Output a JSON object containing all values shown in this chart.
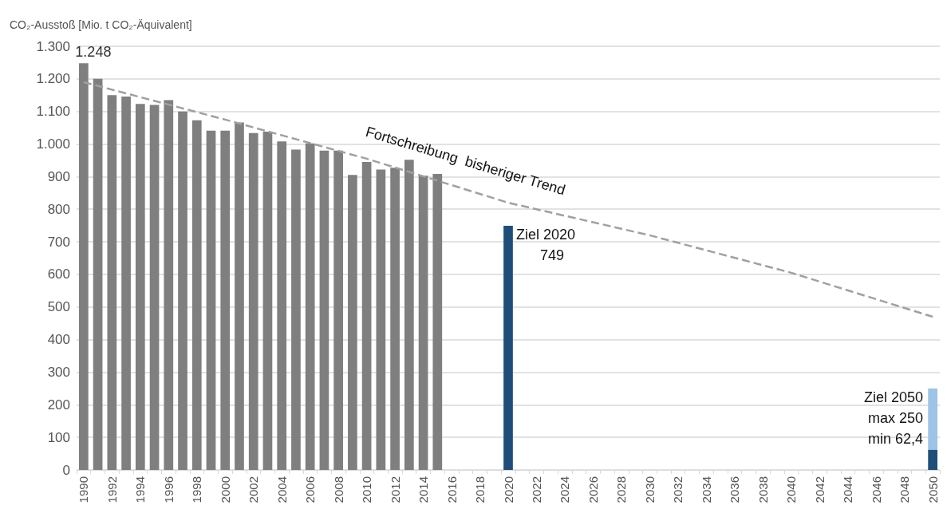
{
  "chart_data": {
    "type": "bar",
    "ylabel": "CO₂-Ausstoß [Mio. t CO₂-Äquivalent]",
    "categories": [
      "1990",
      null,
      "1992",
      null,
      "1994",
      null,
      "1996",
      null,
      "1998",
      null,
      "2000",
      null,
      "2002",
      null,
      "2004",
      null,
      "2006",
      null,
      "2008",
      null,
      "2010",
      null,
      "2012",
      null,
      "2014",
      null,
      "2016",
      null,
      "2018",
      null,
      "2020",
      null,
      "2022",
      null,
      "2024",
      null,
      "2026",
      null,
      "2028",
      null,
      "2030",
      null,
      "2032",
      null,
      "2034",
      null,
      "2036",
      null,
      "2038",
      null,
      "2040",
      null,
      "2042",
      null,
      "2044",
      null,
      "2046",
      null,
      "2048",
      null,
      "2050"
    ],
    "stacked": true,
    "series": [
      {
        "values": [
          1248,
          1200,
          1150,
          1146,
          1123,
          1120,
          1135,
          1100,
          1073,
          1041,
          1041,
          1066,
          1034,
          1038,
          1008,
          983,
          1002,
          980,
          980,
          905,
          945,
          922,
          927,
          952,
          903,
          908,
          null,
          null,
          null,
          null,
          749,
          null,
          null,
          null,
          null,
          null,
          null,
          null,
          null,
          null,
          null,
          null,
          null,
          null,
          null,
          null,
          null,
          null,
          null,
          null,
          null,
          null,
          null,
          null,
          null,
          null,
          null,
          null,
          null,
          null,
          62.4
        ],
        "colors": [
          "#7f7f7f",
          "#7f7f7f",
          "#7f7f7f",
          "#7f7f7f",
          "#7f7f7f",
          "#7f7f7f",
          "#7f7f7f",
          "#7f7f7f",
          "#7f7f7f",
          "#7f7f7f",
          "#7f7f7f",
          "#7f7f7f",
          "#7f7f7f",
          "#7f7f7f",
          "#7f7f7f",
          "#7f7f7f",
          "#7f7f7f",
          "#7f7f7f",
          "#7f7f7f",
          "#7f7f7f",
          "#7f7f7f",
          "#7f7f7f",
          "#7f7f7f",
          "#7f7f7f",
          "#7f7f7f",
          "#7f7f7f",
          null,
          null,
          null,
          null,
          "#1f4e79",
          null,
          null,
          null,
          null,
          null,
          null,
          null,
          null,
          null,
          null,
          null,
          null,
          null,
          null,
          null,
          null,
          null,
          null,
          null,
          null,
          null,
          null,
          null,
          null,
          null,
          null,
          null,
          null,
          null,
          "#1f4e79"
        ],
        "value_labels": [
          "1.248",
          null,
          null,
          null,
          null,
          null,
          null,
          null,
          null,
          null,
          null,
          null,
          null,
          null,
          null,
          null,
          null,
          null,
          null,
          null,
          null,
          null,
          null,
          null,
          null,
          null,
          null,
          null,
          null,
          null,
          null,
          null,
          null,
          null,
          null,
          null,
          null,
          null,
          null,
          null,
          null,
          null,
          null,
          null,
          null,
          null,
          null,
          null,
          null,
          null,
          null,
          null,
          null,
          null,
          null,
          null,
          null,
          null,
          null,
          null,
          null
        ]
      },
      {
        "color": "#9dc3e6",
        "values": [
          null,
          null,
          null,
          null,
          null,
          null,
          null,
          null,
          null,
          null,
          null,
          null,
          null,
          null,
          null,
          null,
          null,
          null,
          null,
          null,
          null,
          null,
          null,
          null,
          null,
          null,
          null,
          null,
          null,
          null,
          null,
          null,
          null,
          null,
          null,
          null,
          null,
          null,
          null,
          null,
          null,
          null,
          null,
          null,
          null,
          null,
          null,
          null,
          null,
          null,
          null,
          null,
          null,
          null,
          null,
          null,
          null,
          null,
          null,
          null,
          187.6
        ]
      },
      {
        "type": "line",
        "color": "#a0a0a0",
        "line_style": "dashed",
        "marker": "none",
        "values": [
          1190,
          null,
          null,
          null,
          null,
          null,
          null,
          null,
          null,
          null,
          1075,
          null,
          null,
          null,
          null,
          null,
          null,
          null,
          null,
          null,
          955,
          null,
          null,
          null,
          null,
          null,
          null,
          null,
          null,
          null,
          820,
          null,
          null,
          null,
          null,
          null,
          null,
          null,
          null,
          null,
          720,
          null,
          null,
          null,
          null,
          null,
          null,
          null,
          null,
          null,
          605,
          null,
          null,
          null,
          null,
          null,
          null,
          null,
          null,
          null,
          470
        ]
      }
    ],
    "ylim": [
      0,
      1300
    ],
    "yticks": [
      0,
      100,
      200,
      300,
      400,
      500,
      600,
      700,
      800,
      900,
      {
        "value": 1000,
        "label": "1.000"
      },
      {
        "value": 1100,
        "label": "1.100"
      },
      {
        "value": 1200,
        "label": "1.200"
      },
      {
        "value": 1300,
        "label": "1.300"
      }
    ],
    "grid": "y",
    "annotations": [
      "Fortschreibung  bisheriger Trend",
      {
        "text": "Ziel 2020\n749",
        "x": "2020",
        "y": 749
      },
      {
        "text": "Ziel 2050\nmax 250\nmin 62,4",
        "x": "2050",
        "y": 250
      }
    ]
  }
}
